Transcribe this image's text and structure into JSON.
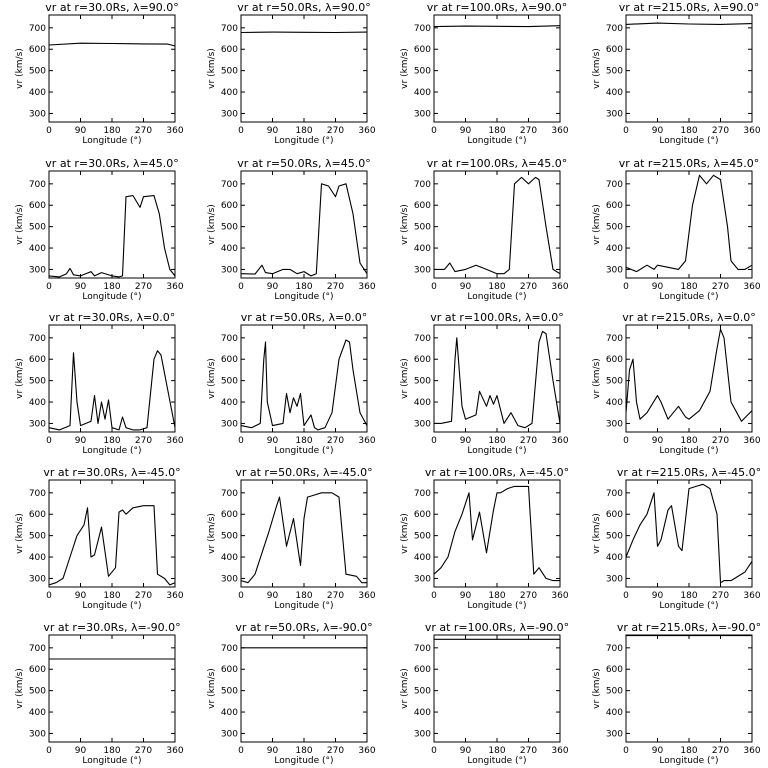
{
  "common": {
    "xlabel": "Longitude (°)",
    "ylabel": "vr (km/s)",
    "xticks": [
      0,
      90,
      180,
      270,
      360
    ],
    "yticks": [
      300,
      400,
      500,
      600,
      700
    ],
    "xlim": [
      0,
      360
    ],
    "ylim": [
      260,
      760
    ]
  },
  "chart_data": [
    {
      "type": "line",
      "title": "vr at r=30.0Rs, λ=90.0°",
      "x": [
        0,
        90,
        180,
        270,
        340,
        360
      ],
      "values": [
        620,
        628,
        627,
        625,
        624,
        615
      ]
    },
    {
      "type": "line",
      "title": "vr at r=50.0Rs, λ=90.0°",
      "x": [
        0,
        90,
        180,
        270,
        360
      ],
      "values": [
        678,
        680,
        679,
        678,
        680
      ]
    },
    {
      "type": "line",
      "title": "vr at r=100.0Rs, λ=90.0°",
      "x": [
        0,
        90,
        180,
        270,
        360
      ],
      "values": [
        706,
        708,
        707,
        706,
        710
      ]
    },
    {
      "type": "line",
      "title": "vr at r=215.0Rs, λ=90.0°",
      "x": [
        0,
        90,
        180,
        270,
        360
      ],
      "values": [
        716,
        722,
        718,
        716,
        720
      ]
    },
    {
      "type": "line",
      "title": "vr at r=30.0Rs, λ=45.0°",
      "x": [
        0,
        30,
        50,
        60,
        70,
        90,
        120,
        130,
        150,
        180,
        200,
        210,
        220,
        240,
        260,
        270,
        300,
        315,
        330,
        345,
        360
      ],
      "values": [
        270,
        265,
        280,
        305,
        275,
        270,
        290,
        270,
        285,
        270,
        265,
        270,
        640,
        645,
        590,
        640,
        645,
        560,
        400,
        300,
        270
      ]
    },
    {
      "type": "line",
      "title": "vr at r=50.0Rs, λ=45.0°",
      "x": [
        0,
        40,
        60,
        70,
        90,
        120,
        140,
        160,
        180,
        200,
        215,
        230,
        250,
        270,
        280,
        300,
        320,
        340,
        360
      ],
      "values": [
        280,
        278,
        320,
        285,
        280,
        300,
        300,
        280,
        290,
        270,
        280,
        700,
        690,
        640,
        690,
        700,
        560,
        330,
        280
      ]
    },
    {
      "type": "line",
      "title": "vr at r=100.0Rs, λ=45.0°",
      "x": [
        0,
        30,
        45,
        60,
        90,
        120,
        150,
        180,
        200,
        215,
        230,
        250,
        270,
        290,
        300,
        320,
        340,
        360
      ],
      "values": [
        300,
        300,
        330,
        290,
        300,
        320,
        300,
        280,
        280,
        300,
        700,
        730,
        700,
        730,
        720,
        500,
        300,
        280
      ]
    },
    {
      "type": "line",
      "title": "vr at r=215.0Rs, λ=45.0°",
      "x": [
        0,
        30,
        60,
        80,
        90,
        120,
        150,
        170,
        190,
        210,
        230,
        250,
        270,
        290,
        300,
        320,
        340,
        360
      ],
      "values": [
        310,
        290,
        320,
        300,
        320,
        310,
        300,
        340,
        600,
        740,
        700,
        740,
        720,
        500,
        340,
        300,
        300,
        320
      ]
    },
    {
      "type": "line",
      "title": "vr at r=30.0Rs, λ=0.0°",
      "x": [
        0,
        30,
        60,
        70,
        80,
        90,
        120,
        130,
        140,
        150,
        160,
        170,
        180,
        200,
        210,
        220,
        240,
        260,
        280,
        300,
        310,
        320,
        340,
        360
      ],
      "values": [
        280,
        270,
        290,
        630,
        400,
        290,
        310,
        430,
        300,
        400,
        320,
        410,
        280,
        270,
        330,
        280,
        270,
        270,
        280,
        600,
        640,
        620,
        450,
        280
      ]
    },
    {
      "type": "line",
      "title": "vr at r=50.0Rs, λ=0.0°",
      "x": [
        0,
        30,
        55,
        65,
        70,
        75,
        90,
        120,
        130,
        140,
        150,
        160,
        170,
        180,
        200,
        210,
        220,
        240,
        260,
        280,
        300,
        310,
        320,
        340,
        360
      ],
      "values": [
        290,
        280,
        300,
        600,
        680,
        400,
        290,
        300,
        440,
        350,
        420,
        380,
        440,
        290,
        340,
        280,
        270,
        280,
        350,
        600,
        690,
        680,
        550,
        350,
        290
      ]
    },
    {
      "type": "line",
      "title": "vr at r=100.0Rs, λ=0.0°",
      "x": [
        0,
        20,
        50,
        60,
        65,
        80,
        90,
        120,
        130,
        150,
        160,
        170,
        180,
        200,
        220,
        240,
        260,
        280,
        300,
        310,
        320,
        340,
        360
      ],
      "values": [
        300,
        300,
        310,
        600,
        700,
        380,
        320,
        340,
        450,
        380,
        430,
        390,
        430,
        300,
        350,
        290,
        280,
        300,
        680,
        730,
        720,
        500,
        300
      ]
    },
    {
      "type": "line",
      "title": "vr at r=215.0Rs, λ=0.0°",
      "x": [
        0,
        10,
        20,
        30,
        40,
        60,
        90,
        100,
        120,
        150,
        170,
        180,
        210,
        240,
        260,
        270,
        280,
        300,
        330,
        360
      ],
      "values": [
        350,
        550,
        600,
        400,
        320,
        350,
        430,
        400,
        320,
        380,
        330,
        320,
        360,
        450,
        650,
        740,
        700,
        400,
        310,
        360
      ]
    },
    {
      "type": "line",
      "title": "vr at r=30.0Rs, λ=-45.0°",
      "x": [
        0,
        20,
        40,
        60,
        80,
        100,
        110,
        120,
        130,
        150,
        170,
        190,
        200,
        210,
        220,
        240,
        270,
        300,
        310,
        330,
        345,
        360
      ],
      "values": [
        270,
        280,
        300,
        400,
        500,
        550,
        630,
        400,
        410,
        540,
        310,
        350,
        610,
        620,
        600,
        630,
        640,
        640,
        320,
        300,
        270,
        280
      ]
    },
    {
      "type": "line",
      "title": "vr at r=50.0Rs, λ=-45.0°",
      "x": [
        0,
        20,
        40,
        60,
        80,
        100,
        110,
        130,
        150,
        170,
        180,
        190,
        210,
        230,
        260,
        280,
        300,
        330,
        345,
        360
      ],
      "values": [
        290,
        280,
        320,
        420,
        520,
        630,
        680,
        450,
        580,
        360,
        580,
        680,
        690,
        700,
        700,
        680,
        320,
        310,
        280,
        280
      ]
    },
    {
      "type": "line",
      "title": "vr at r=100.0Rs, λ=-45.0°",
      "x": [
        0,
        20,
        40,
        60,
        80,
        100,
        110,
        130,
        150,
        170,
        180,
        190,
        210,
        230,
        270,
        285,
        300,
        320,
        340,
        360
      ],
      "values": [
        320,
        350,
        400,
        520,
        600,
        700,
        480,
        610,
        420,
        620,
        700,
        700,
        720,
        730,
        730,
        320,
        350,
        300,
        290,
        290
      ]
    },
    {
      "type": "line",
      "title": "vr at r=215.0Rs, λ=-45.0°",
      "x": [
        0,
        20,
        40,
        60,
        80,
        90,
        100,
        120,
        130,
        150,
        160,
        180,
        200,
        220,
        240,
        260,
        270,
        280,
        300,
        340,
        360
      ],
      "values": [
        400,
        480,
        550,
        600,
        700,
        450,
        480,
        620,
        640,
        450,
        430,
        720,
        730,
        740,
        720,
        600,
        280,
        290,
        290,
        330,
        380
      ]
    },
    {
      "type": "line",
      "title": "vr at r=30.0Rs, λ=-90.0°",
      "x": [
        0,
        360
      ],
      "values": [
        648,
        648
      ]
    },
    {
      "type": "line",
      "title": "vr at r=50.0Rs, λ=-90.0°",
      "x": [
        0,
        360
      ],
      "values": [
        700,
        700
      ]
    },
    {
      "type": "line",
      "title": "vr at r=100.0Rs, λ=-90.0°",
      "x": [
        0,
        360
      ],
      "values": [
        740,
        740
      ]
    },
    {
      "type": "line",
      "title": "vr at r=215.0Rs, λ=-90.0°",
      "x": [
        0,
        360
      ],
      "values": [
        757,
        757
      ]
    }
  ]
}
